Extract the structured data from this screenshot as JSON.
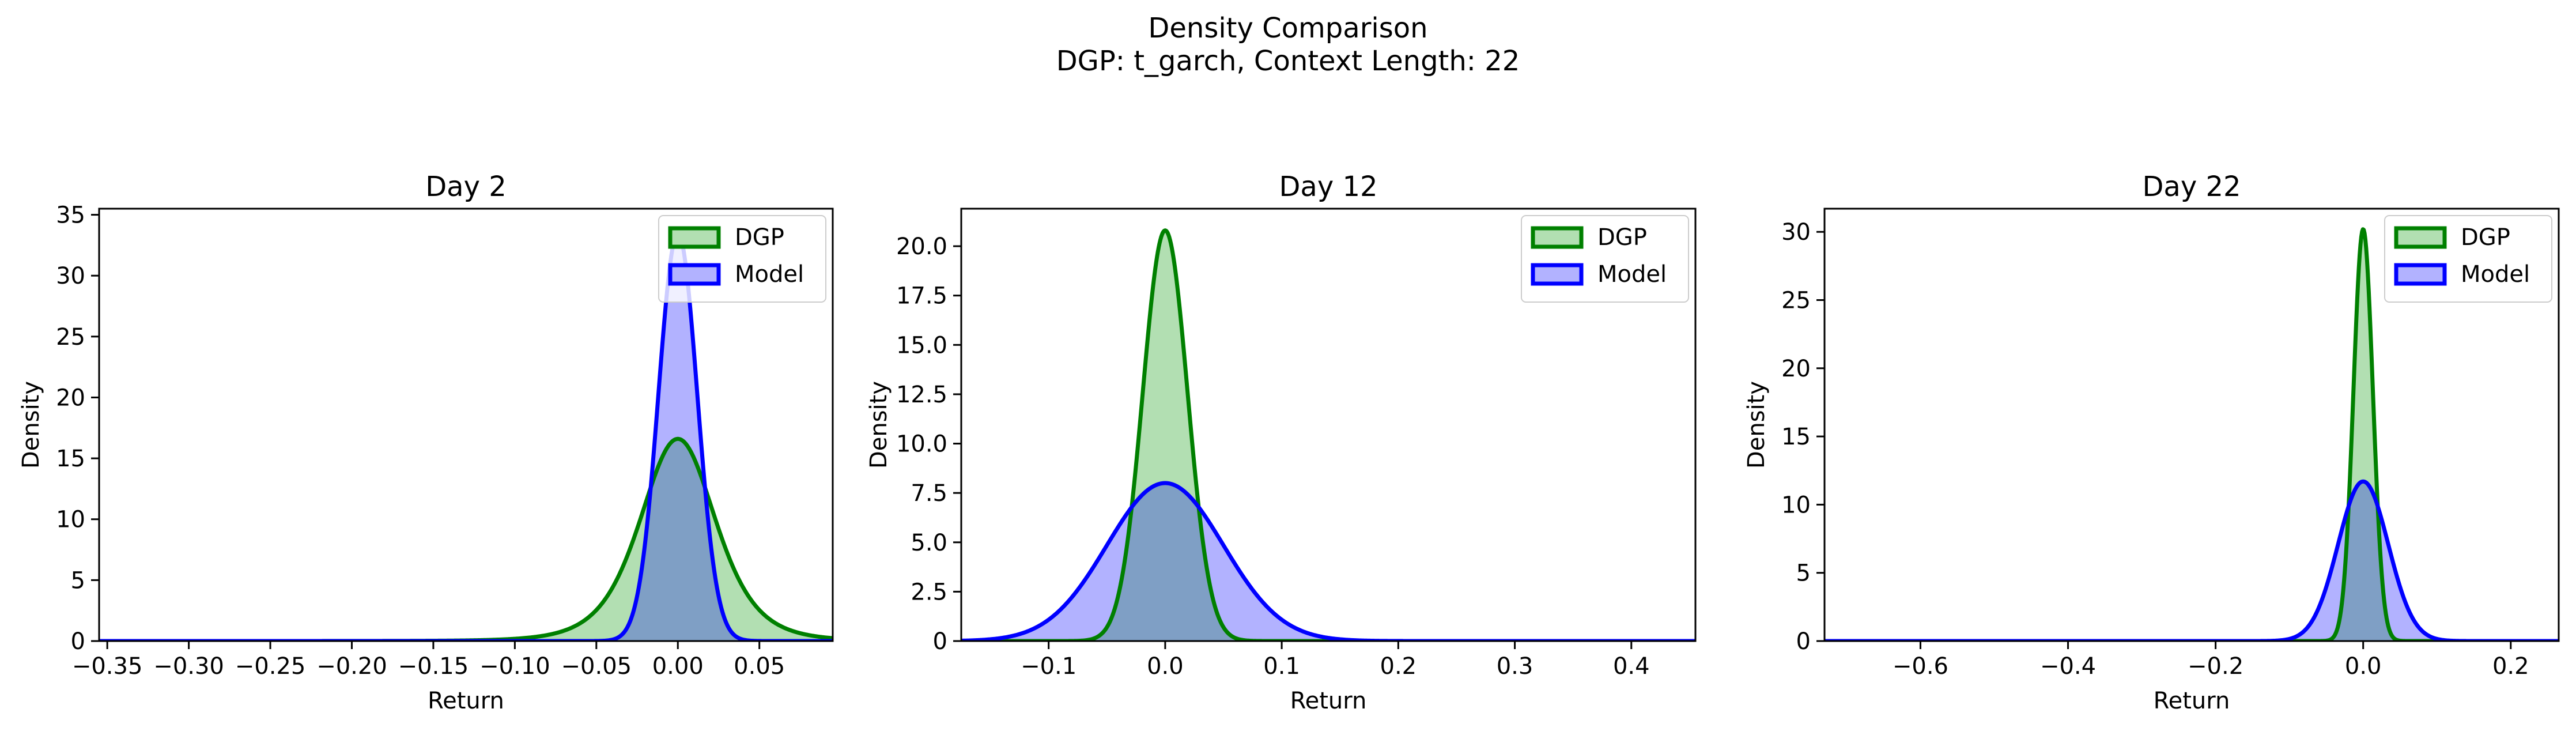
{
  "figure": {
    "title": "Density Comparison",
    "subtitle": "DGP: t_garch, Context Length: 22"
  },
  "colors": {
    "dgp_line": "#008000",
    "dgp_fill": "#b2dfb2",
    "model_line": "#0000ff",
    "model_fill": "#b2b2ff",
    "overlap_fill": "#7f9fc5"
  },
  "chart_data": [
    {
      "type": "area",
      "title": "Day 2",
      "xlabel": "Return",
      "ylabel": "Density",
      "xlim": [
        -0.355,
        0.095
      ],
      "ylim": [
        0,
        35.5
      ],
      "xticks": [
        -0.35,
        -0.3,
        -0.25,
        -0.2,
        -0.15,
        -0.1,
        -0.05,
        0.0,
        0.05
      ],
      "xtick_labels": [
        "−0.35",
        "−0.30",
        "−0.25",
        "−0.20",
        "−0.15",
        "−0.10",
        "−0.05",
        "0.00",
        "0.05"
      ],
      "yticks": [
        0,
        5,
        10,
        15,
        20,
        25,
        30,
        35
      ],
      "ytick_labels": [
        "0",
        "5",
        "10",
        "15",
        "20",
        "25",
        "30",
        "35"
      ],
      "legend": {
        "position": "top-right",
        "entries": [
          "DGP",
          "Model"
        ]
      },
      "series": [
        {
          "name": "DGP",
          "kind": "t",
          "peak": 16.6,
          "center": 0.0,
          "scale": 0.024,
          "df": 5
        },
        {
          "name": "Model",
          "kind": "normal",
          "peak": 33.5,
          "center": 0.0,
          "scale": 0.0119
        }
      ]
    },
    {
      "type": "area",
      "title": "Day 12",
      "xlabel": "Return",
      "ylabel": "Density",
      "xlim": [
        -0.175,
        0.455
      ],
      "ylim": [
        0,
        21.9
      ],
      "xticks": [
        -0.1,
        0.0,
        0.1,
        0.2,
        0.3,
        0.4
      ],
      "xtick_labels": [
        "−0.1",
        "0.0",
        "0.1",
        "0.2",
        "0.3",
        "0.4"
      ],
      "yticks": [
        0,
        2.5,
        5.0,
        7.5,
        10.0,
        12.5,
        15.0,
        17.5,
        20.0
      ],
      "ytick_labels": [
        "0",
        "2.5",
        "5.0",
        "7.5",
        "10.0",
        "12.5",
        "15.0",
        "17.5",
        "20.0"
      ],
      "legend": {
        "position": "top-right",
        "entries": [
          "DGP",
          "Model"
        ]
      },
      "series": [
        {
          "name": "DGP",
          "kind": "normal",
          "peak": 20.8,
          "center": 0.0,
          "scale": 0.0192
        },
        {
          "name": "Model",
          "kind": "normal",
          "peak": 8.0,
          "center": 0.0,
          "scale": 0.05
        }
      ]
    },
    {
      "type": "area",
      "title": "Day 22",
      "xlabel": "Return",
      "ylabel": "Density",
      "xlim": [
        -0.73,
        0.265
      ],
      "ylim": [
        0,
        31.7
      ],
      "xticks": [
        -0.6,
        -0.4,
        -0.2,
        0.0,
        0.2
      ],
      "xtick_labels": [
        "−0.6",
        "−0.4",
        "−0.2",
        "0.0",
        "0.2"
      ],
      "yticks": [
        0,
        5,
        10,
        15,
        20,
        25,
        30
      ],
      "ytick_labels": [
        "0",
        "5",
        "10",
        "15",
        "20",
        "25",
        "30"
      ],
      "legend": {
        "position": "top-right",
        "entries": [
          "DGP",
          "Model"
        ]
      },
      "series": [
        {
          "name": "DGP",
          "kind": "normal",
          "peak": 30.2,
          "center": 0.0,
          "scale": 0.0132
        },
        {
          "name": "Model",
          "kind": "normal",
          "peak": 11.7,
          "center": 0.0,
          "scale": 0.034
        }
      ]
    }
  ]
}
